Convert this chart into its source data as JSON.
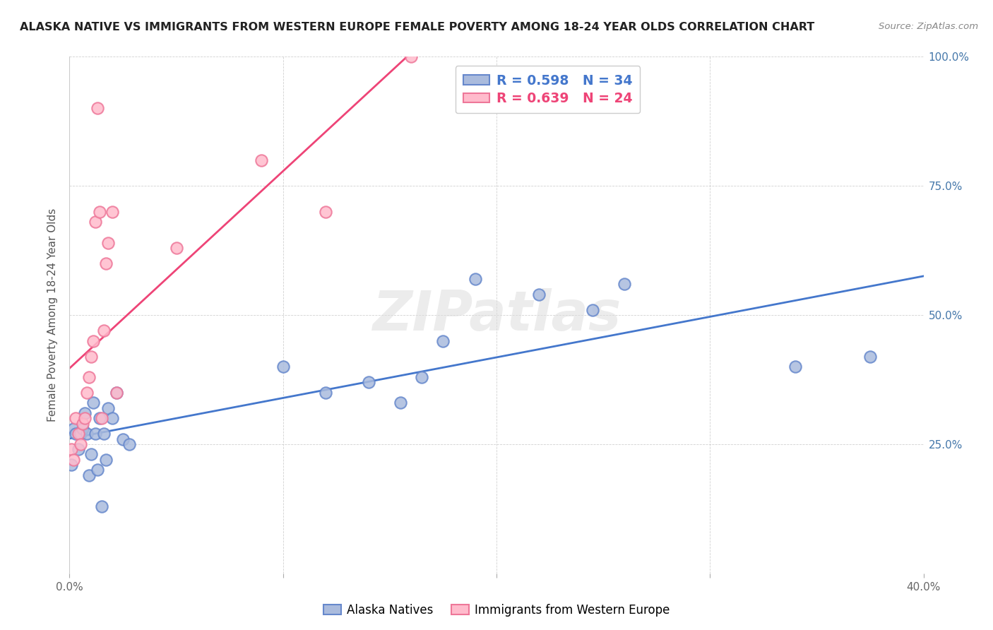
{
  "title": "ALASKA NATIVE VS IMMIGRANTS FROM WESTERN EUROPE FEMALE POVERTY AMONG 18-24 YEAR OLDS CORRELATION CHART",
  "source": "Source: ZipAtlas.com",
  "ylabel": "Female Poverty Among 18-24 Year Olds",
  "xlim": [
    0.0,
    0.4
  ],
  "ylim": [
    0.0,
    1.0
  ],
  "xticks": [
    0.0,
    0.1,
    0.2,
    0.3,
    0.4
  ],
  "yticks": [
    0.0,
    0.25,
    0.5,
    0.75,
    1.0
  ],
  "ytick_labels": [
    "",
    "25.0%",
    "50.0%",
    "75.0%",
    "100.0%"
  ],
  "xtick_labels": [
    "0.0%",
    "",
    "",
    "",
    "40.0%"
  ],
  "blue_R": 0.598,
  "blue_N": 34,
  "pink_R": 0.639,
  "pink_N": 24,
  "blue_color": "#aabbdd",
  "blue_edge_color": "#6688cc",
  "pink_color": "#ffbbcc",
  "pink_edge_color": "#ee7799",
  "blue_line_color": "#4477cc",
  "pink_line_color": "#ee4477",
  "legend_label_blue": "Alaska Natives",
  "legend_label_pink": "Immigrants from Western Europe",
  "watermark": "ZIPatlas",
  "blue_x": [
    0.001,
    0.002,
    0.003,
    0.004,
    0.005,
    0.006,
    0.007,
    0.008,
    0.009,
    0.01,
    0.011,
    0.012,
    0.013,
    0.014,
    0.015,
    0.016,
    0.017,
    0.018,
    0.02,
    0.022,
    0.025,
    0.028,
    0.1,
    0.12,
    0.14,
    0.155,
    0.165,
    0.175,
    0.19,
    0.22,
    0.245,
    0.26,
    0.34,
    0.375
  ],
  "blue_y": [
    0.21,
    0.28,
    0.27,
    0.24,
    0.27,
    0.28,
    0.31,
    0.27,
    0.19,
    0.23,
    0.33,
    0.27,
    0.2,
    0.3,
    0.13,
    0.27,
    0.22,
    0.32,
    0.3,
    0.35,
    0.26,
    0.25,
    0.4,
    0.35,
    0.37,
    0.33,
    0.38,
    0.45,
    0.57,
    0.54,
    0.51,
    0.56,
    0.4,
    0.42
  ],
  "pink_x": [
    0.001,
    0.002,
    0.003,
    0.004,
    0.005,
    0.006,
    0.007,
    0.008,
    0.009,
    0.01,
    0.011,
    0.012,
    0.013,
    0.014,
    0.015,
    0.016,
    0.017,
    0.018,
    0.02,
    0.022,
    0.05,
    0.09,
    0.12,
    0.16
  ],
  "pink_y": [
    0.24,
    0.22,
    0.3,
    0.27,
    0.25,
    0.29,
    0.3,
    0.35,
    0.38,
    0.42,
    0.45,
    0.68,
    0.9,
    0.7,
    0.3,
    0.47,
    0.6,
    0.64,
    0.7,
    0.35,
    0.63,
    0.8,
    0.7,
    1.0
  ]
}
